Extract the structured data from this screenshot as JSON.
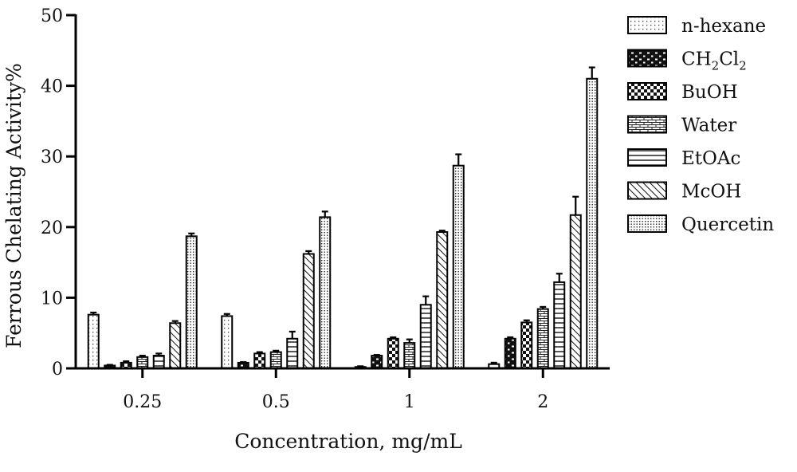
{
  "chart_data": {
    "type": "bar",
    "title": "",
    "xlabel": "Concentration, mg/mL",
    "ylabel": "Ferrous Chelating Activity%",
    "ylim": [
      0,
      50
    ],
    "yticks": [
      "0",
      "10",
      "20",
      "30",
      "40",
      "50"
    ],
    "categories": [
      "0.25",
      "0.5",
      "1",
      "2"
    ],
    "legend_position": "right",
    "grid": false,
    "series": [
      {
        "name": "n-hexane",
        "pattern": "dots-sparse",
        "values": [
          7.6,
          7.4,
          0.2,
          0.6
        ],
        "errors": [
          0.3,
          0.3,
          0.1,
          0.2
        ]
      },
      {
        "name": "CH2Cl2",
        "name_parts": {
          "base1": "CH",
          "sub1": "2",
          "base2": "Cl",
          "sub2": "2"
        },
        "pattern": "bricks-bold",
        "values": [
          0.4,
          0.8,
          1.8,
          4.2
        ],
        "errors": [
          0.1,
          0.1,
          0.1,
          0.2
        ]
      },
      {
        "name": "BuOH",
        "pattern": "checker",
        "values": [
          0.8,
          2.1,
          4.2,
          6.5
        ],
        "errors": [
          0.2,
          0.2,
          0.2,
          0.3
        ]
      },
      {
        "name": "Water",
        "pattern": "bricks-fine",
        "values": [
          1.6,
          2.3,
          3.6,
          8.4
        ],
        "errors": [
          0.2,
          0.2,
          0.5,
          0.3
        ]
      },
      {
        "name": "EtOAc",
        "pattern": "horizontal-lines",
        "values": [
          1.8,
          4.2,
          9.0,
          12.2
        ],
        "errors": [
          0.3,
          1.0,
          1.2,
          1.2
        ]
      },
      {
        "name": "McOH",
        "pattern": "diagonal-lines",
        "values": [
          6.4,
          16.2,
          19.3,
          21.7
        ],
        "errors": [
          0.3,
          0.4,
          0.2,
          2.6
        ]
      },
      {
        "name": "Quercetin",
        "pattern": "dots-dense",
        "values": [
          18.7,
          21.4,
          28.7,
          41.0
        ],
        "errors": [
          0.4,
          0.8,
          1.6,
          1.6
        ]
      }
    ]
  }
}
